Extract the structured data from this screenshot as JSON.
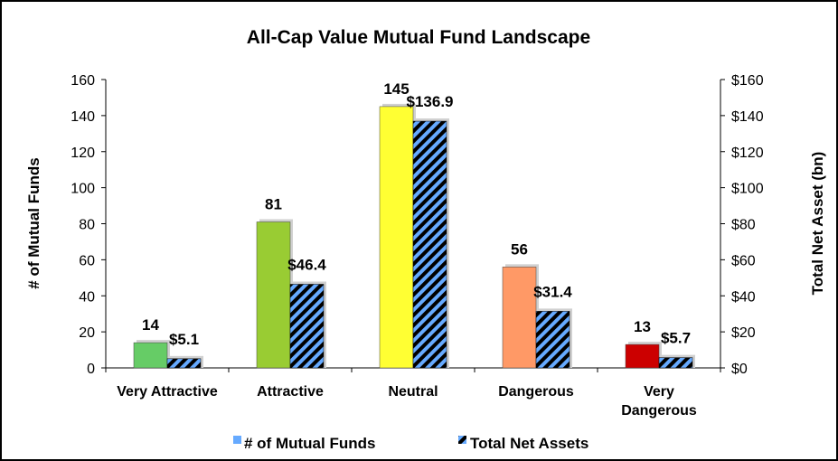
{
  "chart_data": {
    "type": "bar",
    "title": "All-Cap Value Mutual Fund Landscape",
    "categories": [
      [
        "Very Attractive"
      ],
      [
        "Attractive"
      ],
      [
        "Neutral"
      ],
      [
        "Dangerous"
      ],
      [
        "Very",
        "Dangerous"
      ]
    ],
    "series": [
      {
        "name": "# of Mutual Funds",
        "axis": "left",
        "values": [
          14,
          81,
          145,
          56,
          13
        ],
        "labels": [
          "14",
          "81",
          "145",
          "56",
          "13"
        ],
        "colors": [
          "#66cc66",
          "#99cc33",
          "#ffff33",
          "#ff9966",
          "#cc0000"
        ]
      },
      {
        "name": "Total Net Assets",
        "axis": "right",
        "values": [
          5.1,
          46.4,
          136.9,
          31.4,
          5.7
        ],
        "labels": [
          "$5.1",
          "$46.4",
          "$136.9",
          "$31.4",
          "$5.7"
        ],
        "pattern": "hatched",
        "colors": [
          "#66aaff",
          "#000000"
        ]
      }
    ],
    "left_axis": {
      "title": "# of Mutual Funds",
      "ylim": [
        0,
        160
      ],
      "ticks": [
        "0",
        "20",
        "40",
        "60",
        "80",
        "100",
        "120",
        "140",
        "160"
      ]
    },
    "right_axis": {
      "title": "Total Net Asset (bn)",
      "ylim": [
        0,
        160
      ],
      "ticks": [
        "$0",
        "$20",
        "$40",
        "$60",
        "$80",
        "$100",
        "$120",
        "$140",
        "$160"
      ]
    },
    "grid": false,
    "legend_position": "bottom"
  }
}
